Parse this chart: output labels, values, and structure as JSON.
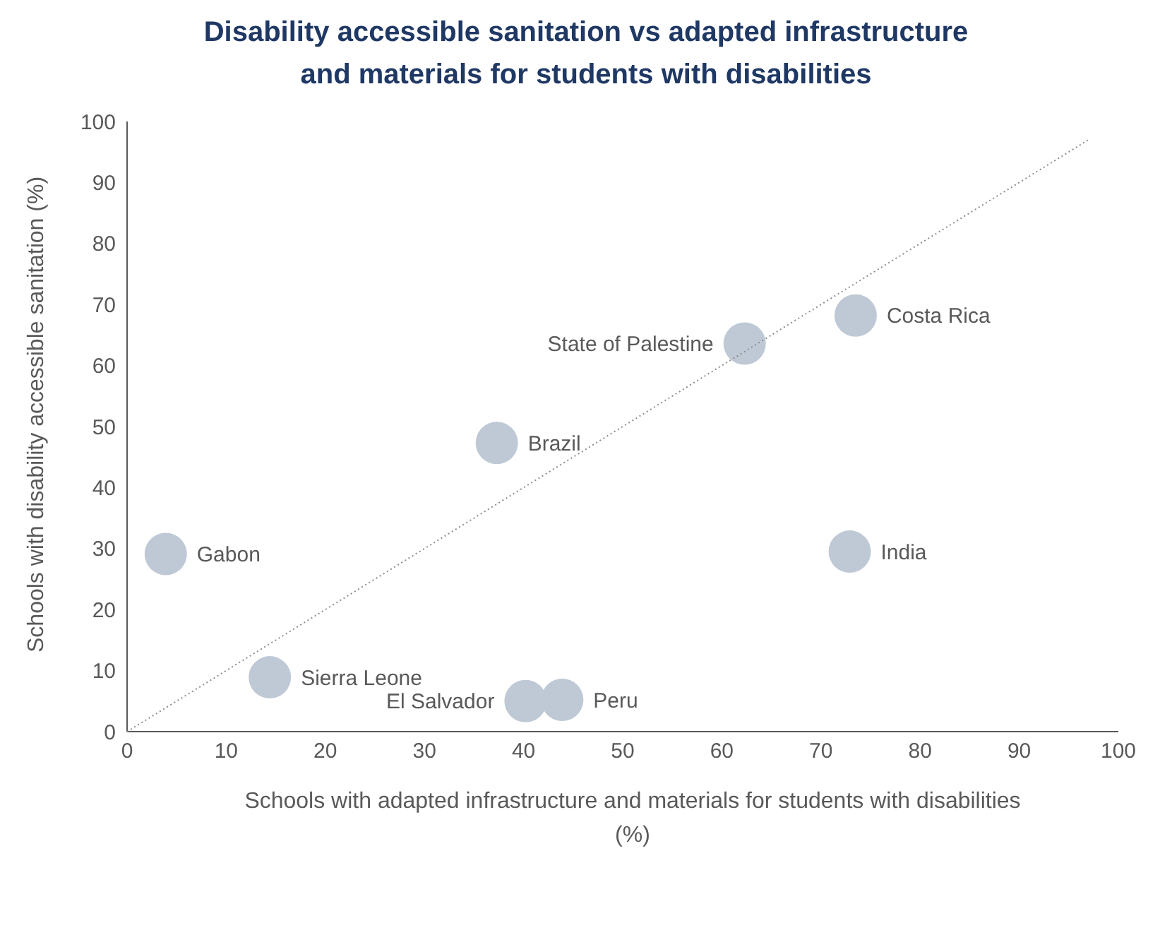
{
  "chart_data": {
    "type": "scatter",
    "title": "Disability accessible sanitation vs adapted infrastructure and materials for students with disabilities",
    "xlabel": "Schools with adapted infrastructure and materials for students with disabilities (%)",
    "ylabel": "Schools with disability accessible sanitation (%)",
    "xlim": [
      0,
      100
    ],
    "ylim": [
      0,
      100
    ],
    "xticks": [
      0,
      10,
      20,
      30,
      40,
      50,
      60,
      70,
      80,
      90,
      100
    ],
    "yticks": [
      0,
      10,
      20,
      30,
      40,
      50,
      60,
      70,
      80,
      90,
      100
    ],
    "grid": false,
    "legend": false,
    "series": [
      {
        "color": "#bfc9d6",
        "marker": "circle",
        "x": [
          3.9,
          14.4,
          40.2,
          43.9,
          37.3,
          62.3,
          73.5,
          72.9
        ],
        "values": [
          29.1,
          8.9,
          5.0,
          5.2,
          47.3,
          63.6,
          68.2,
          29.5
        ]
      },
      {
        "type": "line",
        "color": "#8c8c8c",
        "marker": "none",
        "line_style": "dotted",
        "x": [
          0,
          97
        ],
        "values": [
          0,
          97
        ]
      }
    ],
    "annotations": [
      {
        "text": "Gabon",
        "x": 3.9,
        "y": 29.1
      },
      {
        "text": "Sierra Leone",
        "x": 14.4,
        "y": 8.9
      },
      {
        "text": "El Salvador",
        "x": 40.2,
        "y": 5.0
      },
      {
        "text": "Peru",
        "x": 43.9,
        "y": 5.2
      },
      {
        "text": "Brazil",
        "x": 37.3,
        "y": 47.3
      },
      {
        "text": "State of Palestine",
        "x": 62.3,
        "y": 63.6
      },
      {
        "text": "Costa Rica",
        "x": 73.5,
        "y": 68.2
      },
      {
        "text": "India",
        "x": 72.9,
        "y": 29.5
      }
    ]
  }
}
